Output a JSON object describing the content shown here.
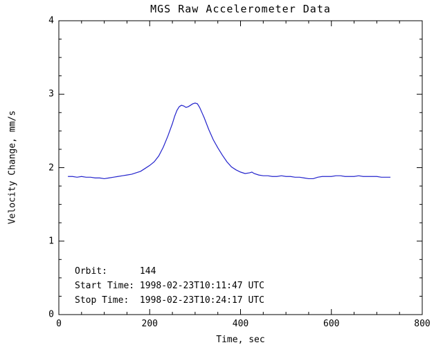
{
  "chart_data": {
    "type": "line",
    "title": "MGS Raw Accelerometer Data",
    "xlabel": "Time, sec",
    "ylabel": "Velocity Change, mm/s",
    "xlim": [
      0,
      800
    ],
    "ylim": [
      0,
      4
    ],
    "xticks": [
      0,
      200,
      400,
      600,
      800
    ],
    "yticks": [
      0,
      1,
      2,
      3,
      4
    ],
    "x_minor_step": 50,
    "y_minor_step": 0.25,
    "grid": false,
    "legend": "none",
    "axis_color": "#000000",
    "line_color": "#2222cc",
    "series": [
      {
        "name": "raw-accelerometer-velocity-change",
        "x": [
          20,
          30,
          40,
          50,
          60,
          70,
          80,
          90,
          100,
          110,
          120,
          130,
          140,
          150,
          160,
          170,
          180,
          190,
          200,
          210,
          215,
          220,
          230,
          240,
          250,
          255,
          260,
          265,
          270,
          275,
          280,
          285,
          290,
          295,
          300,
          305,
          310,
          315,
          320,
          330,
          340,
          350,
          360,
          370,
          380,
          390,
          400,
          410,
          420,
          425,
          430,
          440,
          450,
          460,
          470,
          480,
          490,
          500,
          510,
          520,
          530,
          540,
          550,
          560,
          570,
          580,
          590,
          600,
          610,
          620,
          630,
          640,
          650,
          660,
          670,
          680,
          690,
          700,
          710,
          720,
          730
        ],
        "y": [
          1.88,
          1.88,
          1.87,
          1.88,
          1.87,
          1.87,
          1.86,
          1.86,
          1.85,
          1.86,
          1.87,
          1.88,
          1.89,
          1.9,
          1.91,
          1.93,
          1.95,
          1.99,
          2.03,
          2.08,
          2.12,
          2.16,
          2.28,
          2.43,
          2.6,
          2.7,
          2.78,
          2.83,
          2.85,
          2.84,
          2.82,
          2.83,
          2.85,
          2.87,
          2.88,
          2.87,
          2.82,
          2.75,
          2.68,
          2.52,
          2.38,
          2.27,
          2.17,
          2.08,
          2.01,
          1.97,
          1.94,
          1.92,
          1.93,
          1.94,
          1.92,
          1.9,
          1.89,
          1.89,
          1.88,
          1.88,
          1.89,
          1.88,
          1.88,
          1.87,
          1.87,
          1.86,
          1.85,
          1.85,
          1.87,
          1.88,
          1.88,
          1.88,
          1.89,
          1.89,
          1.88,
          1.88,
          1.88,
          1.89,
          1.88,
          1.88,
          1.88,
          1.88,
          1.87,
          1.87,
          1.87
        ]
      }
    ],
    "annotations": [
      {
        "text": "Orbit:      144",
        "x": 35,
        "y": 0.62
      },
      {
        "text": "Start Time: 1998-02-23T10:11:47 UTC",
        "x": 35,
        "y": 0.42
      },
      {
        "text": "Stop Time:  1998-02-23T10:24:17 UTC",
        "x": 35,
        "y": 0.22
      }
    ]
  }
}
